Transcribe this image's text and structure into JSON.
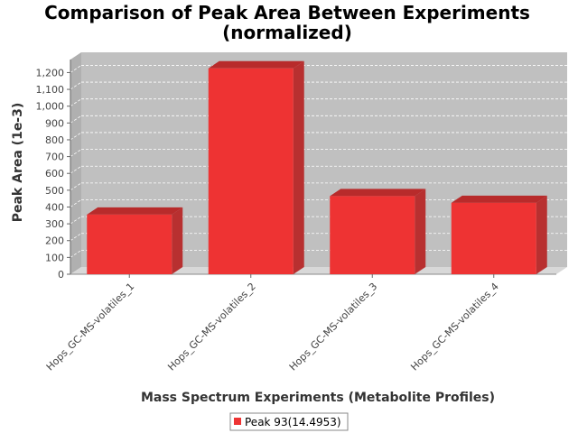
{
  "chart_data": {
    "type": "bar",
    "title_line1": "Comparison of Peak Area Between Experiments",
    "title_line2": "(normalized)",
    "xlabel": "Mass Spectrum Experiments (Metabolite Profiles)",
    "ylabel": "Peak Area (1e-3)",
    "categories": [
      "Hops_GC-MS-volatiles_1",
      "Hops_GC-MS-volatiles_2",
      "Hops_GC-MS-volatiles_3",
      "Hops_GC-MS-volatiles_4"
    ],
    "series": [
      {
        "name": "Peak 93(14.4953)",
        "values": [
          355,
          1225,
          465,
          425
        ]
      }
    ],
    "ylim": [
      0,
      1200
    ],
    "yticks": [
      0,
      100,
      200,
      300,
      400,
      500,
      600,
      700,
      800,
      900,
      1000,
      1100,
      1200
    ],
    "ytick_labels": [
      "0",
      "100",
      "200",
      "300",
      "400",
      "500",
      "600",
      "700",
      "800",
      "900",
      "1,000",
      "1,100",
      "1,200"
    ],
    "grid": true,
    "legend_position": "bottom",
    "colors": {
      "bar_front": "#ee3333",
      "bar_top": "#b82b2b",
      "bar_side": "#b83030",
      "plot_bg": "#c0c0c0",
      "floor": "#d8d8d8",
      "grid": "#ffffff"
    }
  }
}
